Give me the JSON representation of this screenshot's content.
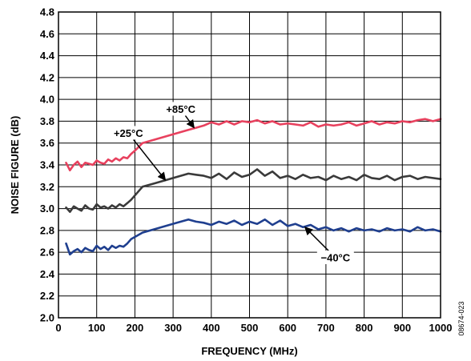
{
  "chart_data": {
    "type": "line",
    "title": "",
    "xlabel": "FREQUENCY (MHz)",
    "ylabel": "NOISE FIGURE (dB)",
    "xlim": [
      0,
      1000
    ],
    "ylim": [
      2.0,
      4.8
    ],
    "x_ticks": [
      0,
      100,
      200,
      300,
      400,
      500,
      600,
      700,
      800,
      900,
      1000
    ],
    "y_ticks": [
      "2.0",
      "2.2",
      "2.4",
      "2.6",
      "2.8",
      "3.0",
      "3.2",
      "3.4",
      "3.6",
      "3.8",
      "4.0",
      "4.2",
      "4.4",
      "4.6",
      "4.8"
    ],
    "grid": true,
    "figure_id": "08674-023",
    "series": [
      {
        "name": "+85°C",
        "color": "#e8415e",
        "x": [
          20,
          30,
          40,
          50,
          60,
          70,
          80,
          90,
          100,
          110,
          120,
          130,
          140,
          150,
          160,
          170,
          180,
          190,
          200,
          220,
          250,
          280,
          310,
          340,
          360,
          380,
          400,
          420,
          440,
          460,
          480,
          500,
          520,
          540,
          560,
          580,
          600,
          620,
          640,
          660,
          680,
          700,
          720,
          740,
          760,
          780,
          800,
          820,
          840,
          860,
          880,
          900,
          920,
          940,
          960,
          980,
          1000
        ],
        "values": [
          3.42,
          3.35,
          3.4,
          3.43,
          3.38,
          3.42,
          3.41,
          3.4,
          3.44,
          3.42,
          3.41,
          3.45,
          3.43,
          3.46,
          3.44,
          3.47,
          3.46,
          3.5,
          3.53,
          3.6,
          3.63,
          3.66,
          3.69,
          3.72,
          3.74,
          3.76,
          3.79,
          3.77,
          3.8,
          3.77,
          3.8,
          3.79,
          3.81,
          3.78,
          3.8,
          3.77,
          3.78,
          3.77,
          3.76,
          3.79,
          3.75,
          3.77,
          3.76,
          3.77,
          3.79,
          3.76,
          3.78,
          3.8,
          3.77,
          3.79,
          3.78,
          3.8,
          3.79,
          3.81,
          3.82,
          3.8,
          3.82
        ]
      },
      {
        "name": "+25°C",
        "color": "#3a3a3a",
        "x": [
          20,
          30,
          40,
          50,
          60,
          70,
          80,
          90,
          100,
          110,
          120,
          130,
          140,
          150,
          160,
          170,
          180,
          190,
          200,
          220,
          250,
          280,
          310,
          340,
          360,
          380,
          400,
          420,
          440,
          460,
          480,
          500,
          520,
          540,
          560,
          580,
          600,
          620,
          640,
          660,
          680,
          700,
          720,
          740,
          760,
          780,
          800,
          820,
          840,
          860,
          880,
          900,
          920,
          940,
          960,
          980,
          1000
        ],
        "values": [
          3.01,
          2.97,
          3.02,
          3.0,
          2.98,
          3.03,
          3.0,
          2.99,
          3.04,
          3.01,
          3.02,
          3.0,
          3.03,
          3.01,
          3.04,
          3.02,
          3.05,
          3.08,
          3.12,
          3.2,
          3.23,
          3.26,
          3.29,
          3.32,
          3.31,
          3.3,
          3.28,
          3.32,
          3.27,
          3.33,
          3.29,
          3.31,
          3.36,
          3.3,
          3.34,
          3.28,
          3.3,
          3.27,
          3.31,
          3.28,
          3.29,
          3.26,
          3.3,
          3.27,
          3.29,
          3.26,
          3.31,
          3.28,
          3.27,
          3.3,
          3.26,
          3.29,
          3.3,
          3.27,
          3.29,
          3.28,
          3.27
        ]
      },
      {
        "name": "−40°C",
        "color": "#1f3f8f",
        "x": [
          20,
          30,
          40,
          50,
          60,
          70,
          80,
          90,
          100,
          110,
          120,
          130,
          140,
          150,
          160,
          170,
          180,
          190,
          200,
          220,
          250,
          280,
          310,
          340,
          360,
          380,
          400,
          420,
          440,
          460,
          480,
          500,
          520,
          540,
          560,
          580,
          600,
          620,
          640,
          660,
          680,
          700,
          720,
          740,
          760,
          780,
          800,
          820,
          840,
          860,
          880,
          900,
          920,
          940,
          960,
          980,
          1000
        ],
        "values": [
          2.68,
          2.58,
          2.61,
          2.63,
          2.6,
          2.64,
          2.62,
          2.61,
          2.66,
          2.63,
          2.65,
          2.62,
          2.66,
          2.64,
          2.66,
          2.65,
          2.68,
          2.72,
          2.74,
          2.78,
          2.81,
          2.84,
          2.87,
          2.9,
          2.88,
          2.87,
          2.85,
          2.88,
          2.86,
          2.89,
          2.85,
          2.88,
          2.86,
          2.9,
          2.85,
          2.89,
          2.84,
          2.86,
          2.83,
          2.85,
          2.81,
          2.83,
          2.8,
          2.82,
          2.79,
          2.82,
          2.8,
          2.81,
          2.79,
          2.82,
          2.8,
          2.81,
          2.79,
          2.83,
          2.8,
          2.81,
          2.79
        ]
      }
    ],
    "annotations": [
      {
        "text": "+85°C",
        "series": 0,
        "at_x": 355,
        "at_y": 3.74,
        "label_x": 320,
        "label_y": 3.91
      },
      {
        "text": "+25°C",
        "series": 1,
        "at_x": 280,
        "at_y": 3.26,
        "label_x": 183,
        "label_y": 3.69
      },
      {
        "text": "−40°C",
        "series": 2,
        "at_x": 645,
        "at_y": 2.83,
        "label_x": 725,
        "label_y": 2.55
      }
    ]
  }
}
